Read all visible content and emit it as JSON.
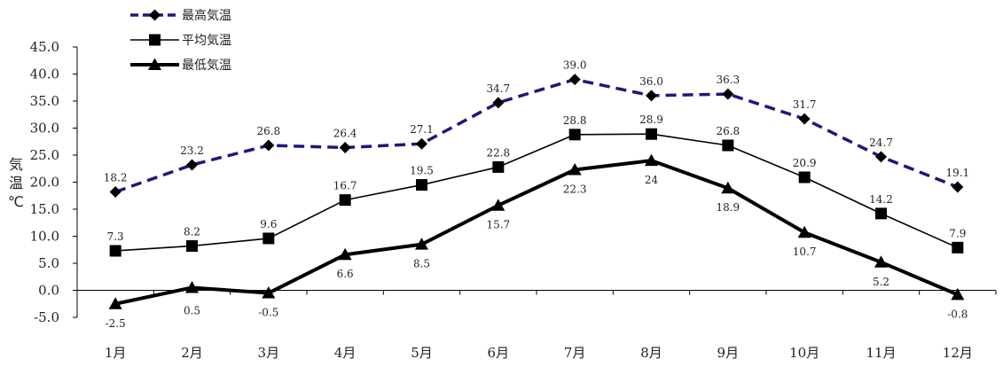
{
  "chart_data": {
    "type": "line",
    "categories": [
      "1月",
      "2月",
      "3月",
      "4月",
      "5月",
      "6月",
      "7月",
      "8月",
      "9月",
      "10月",
      "11月",
      "12月"
    ],
    "ylabel": "気温℃",
    "ylim": [
      -5.0,
      45.0
    ],
    "yticks": [
      "-5.0",
      "0.0",
      "5.0",
      "10.0",
      "15.0",
      "20.0",
      "25.0",
      "30.0",
      "35.0",
      "40.0",
      "45.0"
    ],
    "legend_position": "top-left",
    "grid": false,
    "series": [
      {
        "name": "最高気温",
        "style": "dashed",
        "marker": "diamond",
        "color": "#1a1a7a",
        "values": [
          18.2,
          23.2,
          26.8,
          26.4,
          27.1,
          34.7,
          39.0,
          36.0,
          36.3,
          31.7,
          24.7,
          19.1
        ],
        "labels": [
          "18.2",
          "23.2",
          "26.8",
          "26.4",
          "27.1",
          "34.7",
          "39.0",
          "36.0",
          "36.3",
          "31.7",
          "24.7",
          "19.1"
        ]
      },
      {
        "name": "平均気温",
        "style": "solid",
        "marker": "square",
        "color": "#000000",
        "values": [
          7.3,
          8.2,
          9.6,
          16.7,
          19.5,
          22.8,
          28.8,
          28.9,
          26.8,
          20.9,
          14.2,
          7.9
        ],
        "labels": [
          "7.3",
          "8.2",
          "9.6",
          "16.7",
          "19.5",
          "22.8",
          "28.8",
          "28.9",
          "26.8",
          "20.9",
          "14.2",
          "7.9"
        ]
      },
      {
        "name": "最低気温",
        "style": "bold",
        "marker": "triangle",
        "color": "#000000",
        "values": [
          -2.5,
          0.5,
          -0.5,
          6.6,
          8.5,
          15.7,
          22.3,
          24,
          18.9,
          10.7,
          5.2,
          -0.8
        ],
        "labels": [
          "-2.5",
          "0.5",
          "-0.5",
          "6.6",
          "8.5",
          "15.7",
          "22.3",
          "24",
          "18.9",
          "10.7",
          "5.2",
          "-0.8"
        ]
      }
    ]
  }
}
